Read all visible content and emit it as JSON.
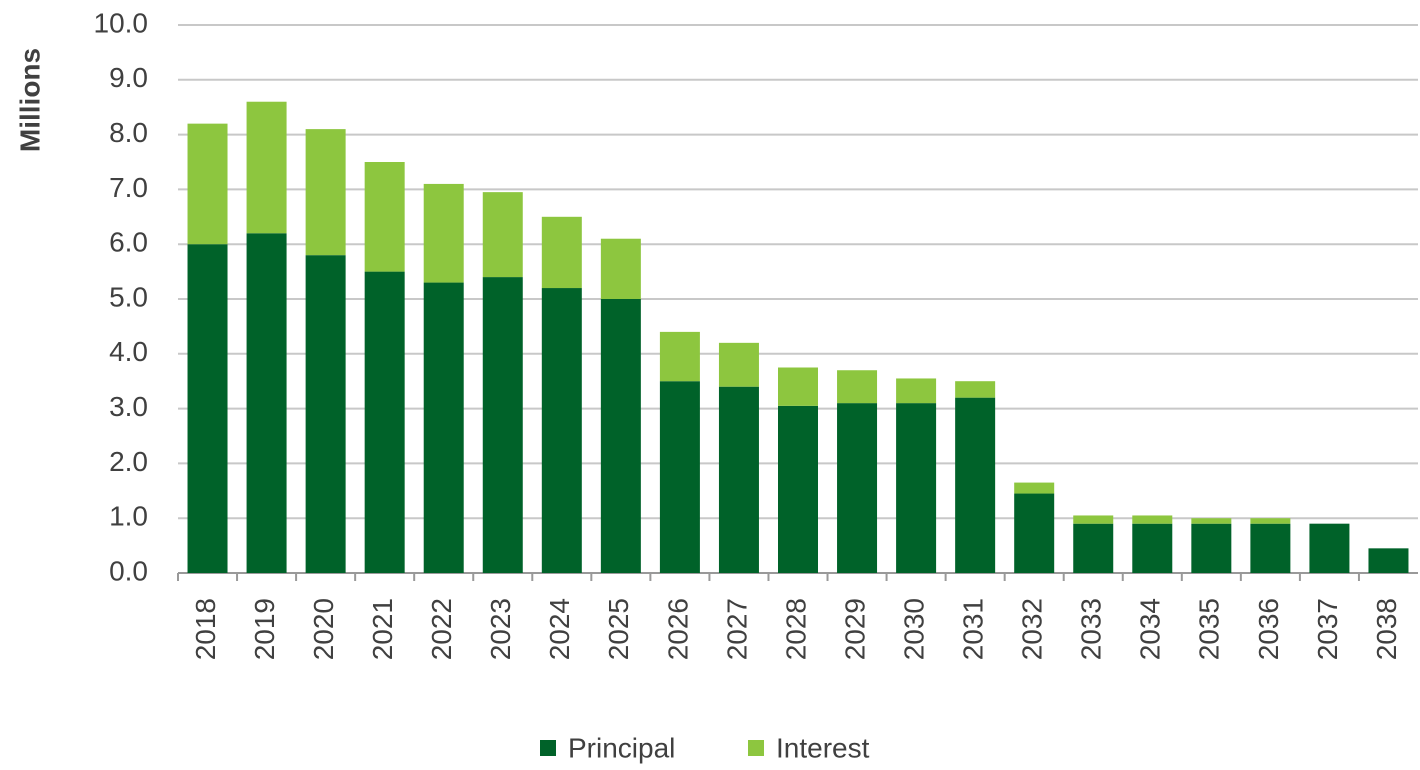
{
  "chart_data": {
    "type": "stacked_bar",
    "y_label": "Millions",
    "categories": [
      "2018",
      "2019",
      "2020",
      "2021",
      "2022",
      "2023",
      "2024",
      "2025",
      "2026",
      "2027",
      "2028",
      "2029",
      "2030",
      "2031",
      "2032",
      "2033",
      "2034",
      "2035",
      "2036",
      "2037",
      "2038"
    ],
    "series": [
      {
        "name": "Principal",
        "color": "#006229",
        "values": [
          6.0,
          6.2,
          5.8,
          5.5,
          5.3,
          5.4,
          5.2,
          5.0,
          3.5,
          3.4,
          3.05,
          3.1,
          3.1,
          3.2,
          1.45,
          0.9,
          0.9,
          0.9,
          0.9,
          0.9,
          0.45
        ]
      },
      {
        "name": "Interest",
        "color": "#8dc63f",
        "values": [
          2.2,
          2.4,
          2.3,
          2.0,
          1.8,
          1.55,
          1.3,
          1.1,
          0.9,
          0.8,
          0.7,
          0.6,
          0.45,
          0.3,
          0.2,
          0.15,
          0.15,
          0.1,
          0.1,
          0,
          0
        ]
      }
    ],
    "ylim": [
      0,
      10
    ],
    "yticks": [
      {
        "value": 0,
        "label": "0.0"
      },
      {
        "value": 1,
        "label": "1.0"
      },
      {
        "value": 2,
        "label": "2.0"
      },
      {
        "value": 3,
        "label": "3.0"
      },
      {
        "value": 4,
        "label": "4.0"
      },
      {
        "value": 5,
        "label": "5.0"
      },
      {
        "value": 6,
        "label": "6.0"
      },
      {
        "value": 7,
        "label": "7.0"
      },
      {
        "value": 8,
        "label": "8.0"
      },
      {
        "value": 9,
        "label": "9.0"
      },
      {
        "value": 10,
        "label": "10.0"
      }
    ],
    "grid": true,
    "legend": "bottom"
  }
}
